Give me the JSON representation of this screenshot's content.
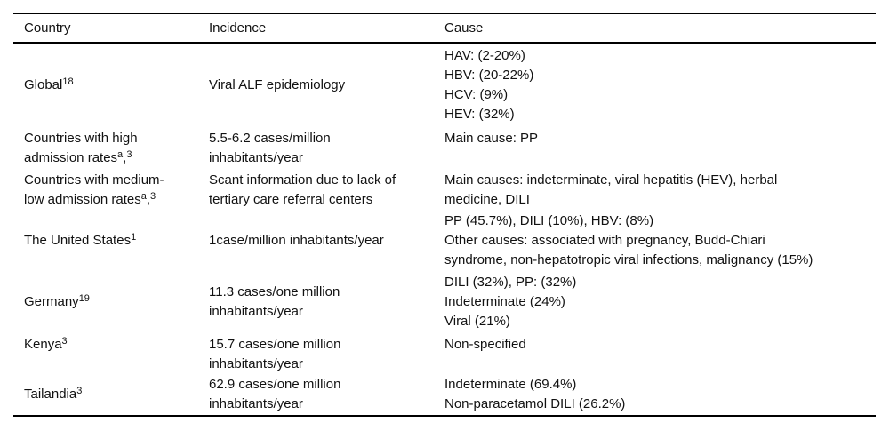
{
  "colors": {
    "background": "#ffffff",
    "text": "#111111",
    "rules": "#000000"
  },
  "table": {
    "columns": [
      "Country",
      "Incidence",
      "Cause"
    ],
    "rows": [
      {
        "country": [
          [
            {
              "t": "Global"
            },
            {
              "t": "18",
              "sup": true
            }
          ]
        ],
        "incidence": [
          "Viral ALF epidemiology"
        ],
        "cause": [
          "HAV: (2-20%)",
          "HBV: (20-22%)",
          "HCV: (9%)",
          "HEV: (32%)"
        ]
      },
      {
        "country": [
          [
            {
              "t": "Countries with high"
            }
          ],
          [
            {
              "t": "admission rates"
            },
            {
              "t": "a",
              "sup": true
            },
            {
              "t": ","
            },
            {
              "t": "3",
              "sup": true
            }
          ]
        ],
        "incidence": [
          "5.5-6.2 cases/million",
          "inhabitants/year"
        ],
        "cause": [
          "Main cause: PP"
        ]
      },
      {
        "country": [
          [
            {
              "t": "Countries with medium-"
            }
          ],
          [
            {
              "t": "low admission rates"
            },
            {
              "t": "a",
              "sup": true
            },
            {
              "t": ","
            },
            {
              "t": "3",
              "sup": true
            }
          ]
        ],
        "incidence": [
          "Scant information due to lack of",
          "tertiary care referral centers"
        ],
        "cause": [
          "Main causes: indeterminate, viral hepatitis (HEV), herbal",
          "medicine, DILI"
        ]
      },
      {
        "country": [
          [
            {
              "t": "The United States"
            },
            {
              "t": "1",
              "sup": true
            }
          ]
        ],
        "incidence": [
          "1case/million inhabitants/year"
        ],
        "cause": [
          "PP (45.7%), DILI (10%), HBV: (8%)",
          "Other causes: associated with pregnancy, Budd-Chiari",
          "syndrome, non-hepatotropic viral infections, malignancy (15%)"
        ]
      },
      {
        "country": [
          [
            {
              "t": "Germany"
            },
            {
              "t": "19",
              "sup": true
            }
          ]
        ],
        "incidence": [
          "11.3 cases/one million",
          "inhabitants/year"
        ],
        "cause": [
          "DILI (32%), PP: (32%)",
          "Indeterminate (24%)",
          "Viral (21%)"
        ]
      },
      {
        "country": [
          [
            {
              "t": "Kenya"
            },
            {
              "t": "3",
              "sup": true
            }
          ]
        ],
        "incidence": [
          "15.7 cases/one million",
          "inhabitants/year"
        ],
        "cause": [
          "Non-specified"
        ]
      },
      {
        "country": [
          [
            {
              "t": "Tailandia"
            },
            {
              "t": "3",
              "sup": true
            }
          ]
        ],
        "incidence": [
          "62.9 cases/one million",
          "inhabitants/year"
        ],
        "cause": [
          "Indeterminate (69.4%)",
          "Non-paracetamol DILI (26.2%)"
        ]
      }
    ]
  }
}
